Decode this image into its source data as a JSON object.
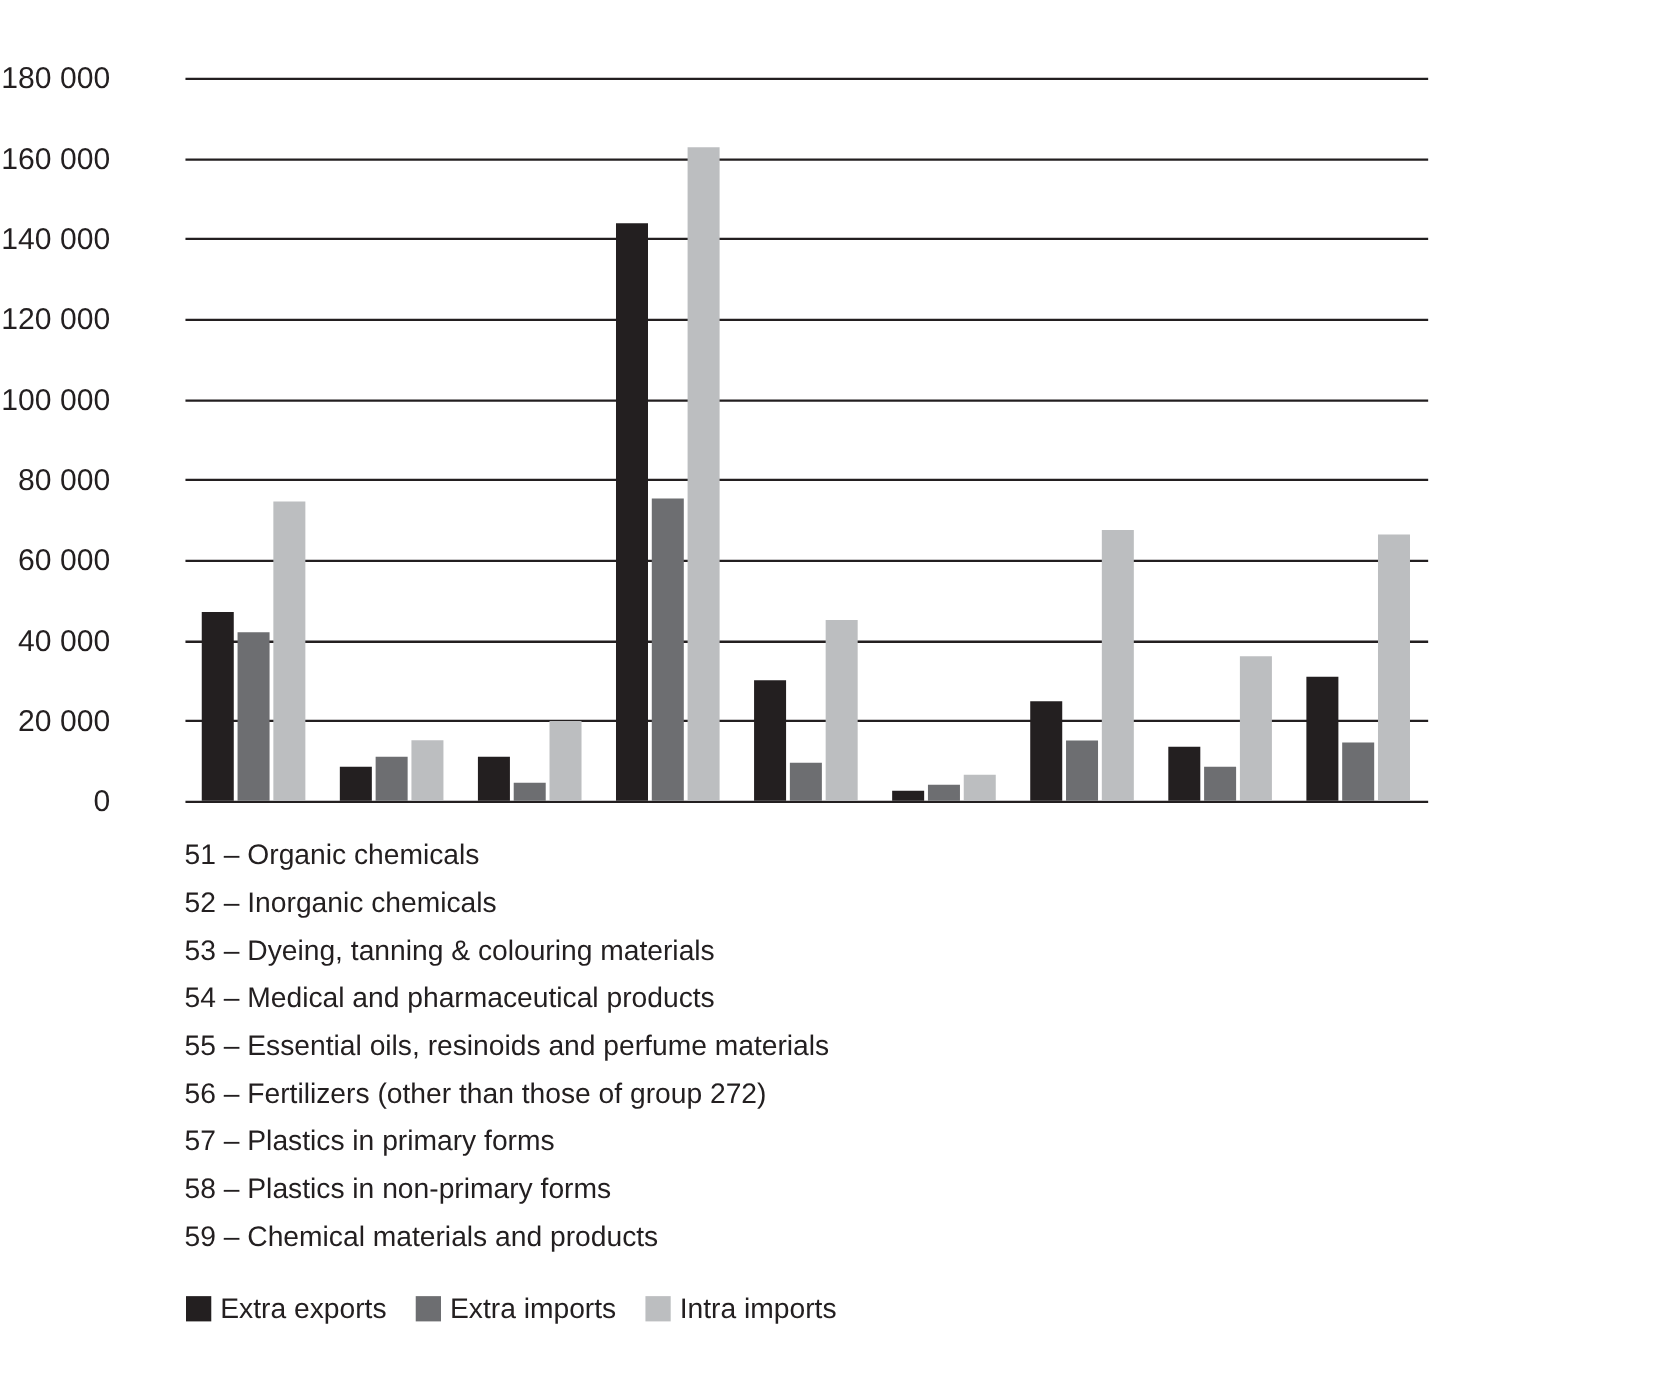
{
  "chart_data": {
    "type": "bar",
    "categories": [
      null,
      null,
      null,
      null,
      null,
      null,
      null,
      null,
      null
    ],
    "series": [
      {
        "name": "Extra exports",
        "color": "#231f20",
        "values": [
          47000,
          8500,
          11000,
          143800,
          30000,
          2500,
          24800,
          13500,
          30900
        ]
      },
      {
        "name": "Extra imports",
        "color": "#6d6e71",
        "values": [
          42000,
          11000,
          4500,
          75300,
          9500,
          4000,
          15000,
          8500,
          14500
        ]
      },
      {
        "name": "Intra imports",
        "color": "#bcbec0",
        "values": [
          74500,
          15100,
          19900,
          162700,
          45000,
          6500,
          67400,
          36000,
          66300
        ]
      }
    ],
    "ylim": [
      0,
      180000
    ],
    "yticks": [
      {
        "value": 0,
        "label": "0"
      },
      {
        "value": 20000,
        "label": "20 000"
      },
      {
        "value": 40000,
        "label": "40 000"
      },
      {
        "value": 60000,
        "label": "60 000"
      },
      {
        "value": 80000,
        "label": "80 000"
      },
      {
        "value": 100000,
        "label": "100 000"
      },
      {
        "value": 120000,
        "label": "120 000"
      },
      {
        "value": 140000,
        "label": "140 000"
      },
      {
        "value": 160000,
        "label": "160 000"
      },
      {
        "value": 180000,
        "label": "180 000"
      }
    ],
    "grid": "y",
    "legend": "bottom",
    "tick_labels": "y",
    "annotations": [
      "51 – Organic chemicals",
      "52 – Inorganic chemicals",
      "53 – Dyeing, tanning & colouring materials",
      "54 – Medical and pharmaceutical products",
      "55 – Essential oils, resinoids and perfume materials",
      "56 – Fertilizers (other than those of group 272)",
      "57 – Plastics in primary forms",
      "58 – Plastics in non-primary forms",
      "59 – Chemical materials and products"
    ]
  }
}
